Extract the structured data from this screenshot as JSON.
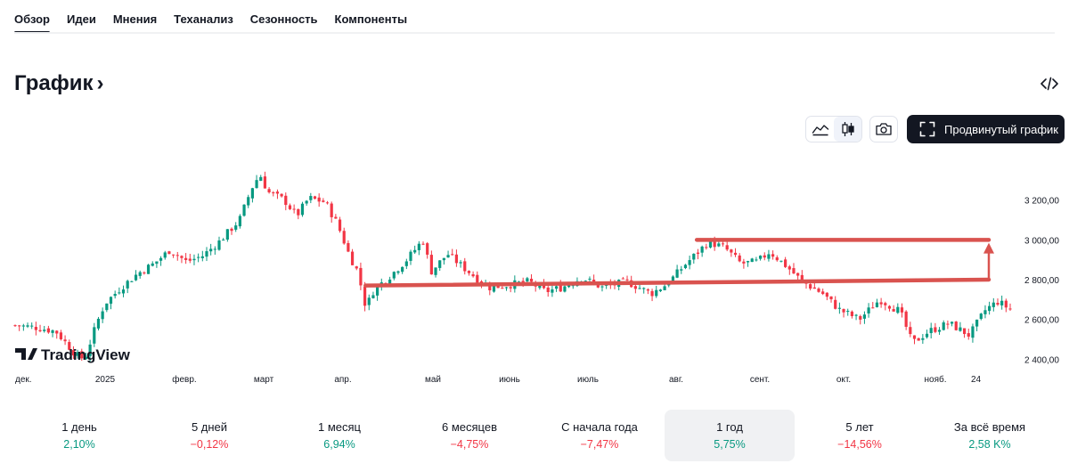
{
  "tabs": [
    {
      "label": "Обзор",
      "active": true
    },
    {
      "label": "Идеи",
      "active": false
    },
    {
      "label": "Мнения",
      "active": false
    },
    {
      "label": "Теханализ",
      "active": false
    },
    {
      "label": "Сезонность",
      "active": false
    },
    {
      "label": "Компоненты",
      "active": false
    }
  ],
  "section": {
    "title": "График",
    "chevron": "›"
  },
  "toolbar": {
    "advanced_label": "Продвинутый график",
    "icons": [
      "area-chart-icon",
      "candles-icon",
      "camera-icon",
      "fullscreen-icon",
      "embed-code-icon"
    ]
  },
  "chart_data": {
    "type": "candlestick",
    "watermark": "TradingView",
    "y_ticks": [
      "3 200,00",
      "3 000,00",
      "2 800,00",
      "2 600,00",
      "2 400,00"
    ],
    "y_tick_values": [
      3200,
      3000,
      2800,
      2600,
      2400
    ],
    "ylim": [
      2370,
      3400
    ],
    "x_ticks": [
      "дек.",
      "2025",
      "февр.",
      "март",
      "апр.",
      "май",
      "июнь",
      "июль",
      "авг.",
      "сент.",
      "окт.",
      "нояб.",
      "24"
    ],
    "x_tick_month_index": [
      0,
      1,
      2,
      3,
      4,
      5,
      6,
      7,
      8,
      9,
      10,
      11,
      11.7
    ],
    "colors": {
      "up": "#089981",
      "down": "#f23645",
      "drawing": "#d9534f"
    },
    "drawings": [
      {
        "kind": "line",
        "from": [
          8.3,
          3000
        ],
        "to": [
          12.25,
          3000
        ]
      },
      {
        "kind": "line",
        "from": [
          4.3,
          2770
        ],
        "to": [
          12.25,
          2800
        ]
      },
      {
        "kind": "arrow",
        "from": [
          12.2,
          2800
        ],
        "to": [
          12.2,
          2985
        ]
      }
    ],
    "anchors": [
      [
        0.0,
        2570
      ],
      [
        0.25,
        2560
      ],
      [
        0.5,
        2540
      ],
      [
        0.75,
        2420
      ],
      [
        0.85,
        2400
      ],
      [
        1.0,
        2580
      ],
      [
        1.1,
        2680
      ],
      [
        1.3,
        2760
      ],
      [
        1.5,
        2830
      ],
      [
        1.7,
        2880
      ],
      [
        1.9,
        2950
      ],
      [
        2.1,
        2890
      ],
      [
        2.3,
        2920
      ],
      [
        2.5,
        2990
      ],
      [
        2.75,
        3100
      ],
      [
        2.9,
        3260
      ],
      [
        3.0,
        3330
      ],
      [
        3.1,
        3240
      ],
      [
        3.3,
        3200
      ],
      [
        3.45,
        3120
      ],
      [
        3.6,
        3210
      ],
      [
        3.8,
        3190
      ],
      [
        3.95,
        3080
      ],
      [
        4.1,
        2920
      ],
      [
        4.2,
        2840
      ],
      [
        4.3,
        2660
      ],
      [
        4.4,
        2750
      ],
      [
        4.6,
        2820
      ],
      [
        4.8,
        2900
      ],
      [
        5.0,
        3000
      ],
      [
        5.1,
        2840
      ],
      [
        5.3,
        2930
      ],
      [
        5.5,
        2860
      ],
      [
        5.8,
        2760
      ],
      [
        6.0,
        2770
      ],
      [
        6.3,
        2790
      ],
      [
        6.5,
        2740
      ],
      [
        6.7,
        2760
      ],
      [
        6.95,
        2810
      ],
      [
        7.2,
        2760
      ],
      [
        7.5,
        2790
      ],
      [
        7.8,
        2730
      ],
      [
        8.0,
        2780
      ],
      [
        8.2,
        2870
      ],
      [
        8.5,
        2990
      ],
      [
        8.7,
        2960
      ],
      [
        8.9,
        2880
      ],
      [
        9.1,
        2890
      ],
      [
        9.25,
        2940
      ],
      [
        9.45,
        2870
      ],
      [
        9.65,
        2790
      ],
      [
        9.9,
        2730
      ],
      [
        10.1,
        2650
      ],
      [
        10.35,
        2600
      ],
      [
        10.6,
        2700
      ],
      [
        10.85,
        2640
      ],
      [
        11.0,
        2480
      ],
      [
        11.2,
        2540
      ],
      [
        11.45,
        2580
      ],
      [
        11.7,
        2520
      ],
      [
        11.9,
        2650
      ],
      [
        12.05,
        2690
      ],
      [
        12.2,
        2650
      ]
    ],
    "candle_count": 240
  },
  "periods": [
    {
      "label": "1 день",
      "value": "2,10%",
      "dir": "pos",
      "selected": false
    },
    {
      "label": "5 дней",
      "value": "−0,12%",
      "dir": "neg",
      "selected": false
    },
    {
      "label": "1 месяц",
      "value": "6,94%",
      "dir": "pos",
      "selected": false
    },
    {
      "label": "6 месяцев",
      "value": "−4,75%",
      "dir": "neg",
      "selected": false
    },
    {
      "label": "С начала года",
      "value": "−7,47%",
      "dir": "neg",
      "selected": false
    },
    {
      "label": "1 год",
      "value": "5,75%",
      "dir": "pos",
      "selected": true
    },
    {
      "label": "5 лет",
      "value": "−14,56%",
      "dir": "neg",
      "selected": false
    },
    {
      "label": "За всё время",
      "value": "2,58 K%",
      "dir": "pos",
      "selected": false
    }
  ]
}
